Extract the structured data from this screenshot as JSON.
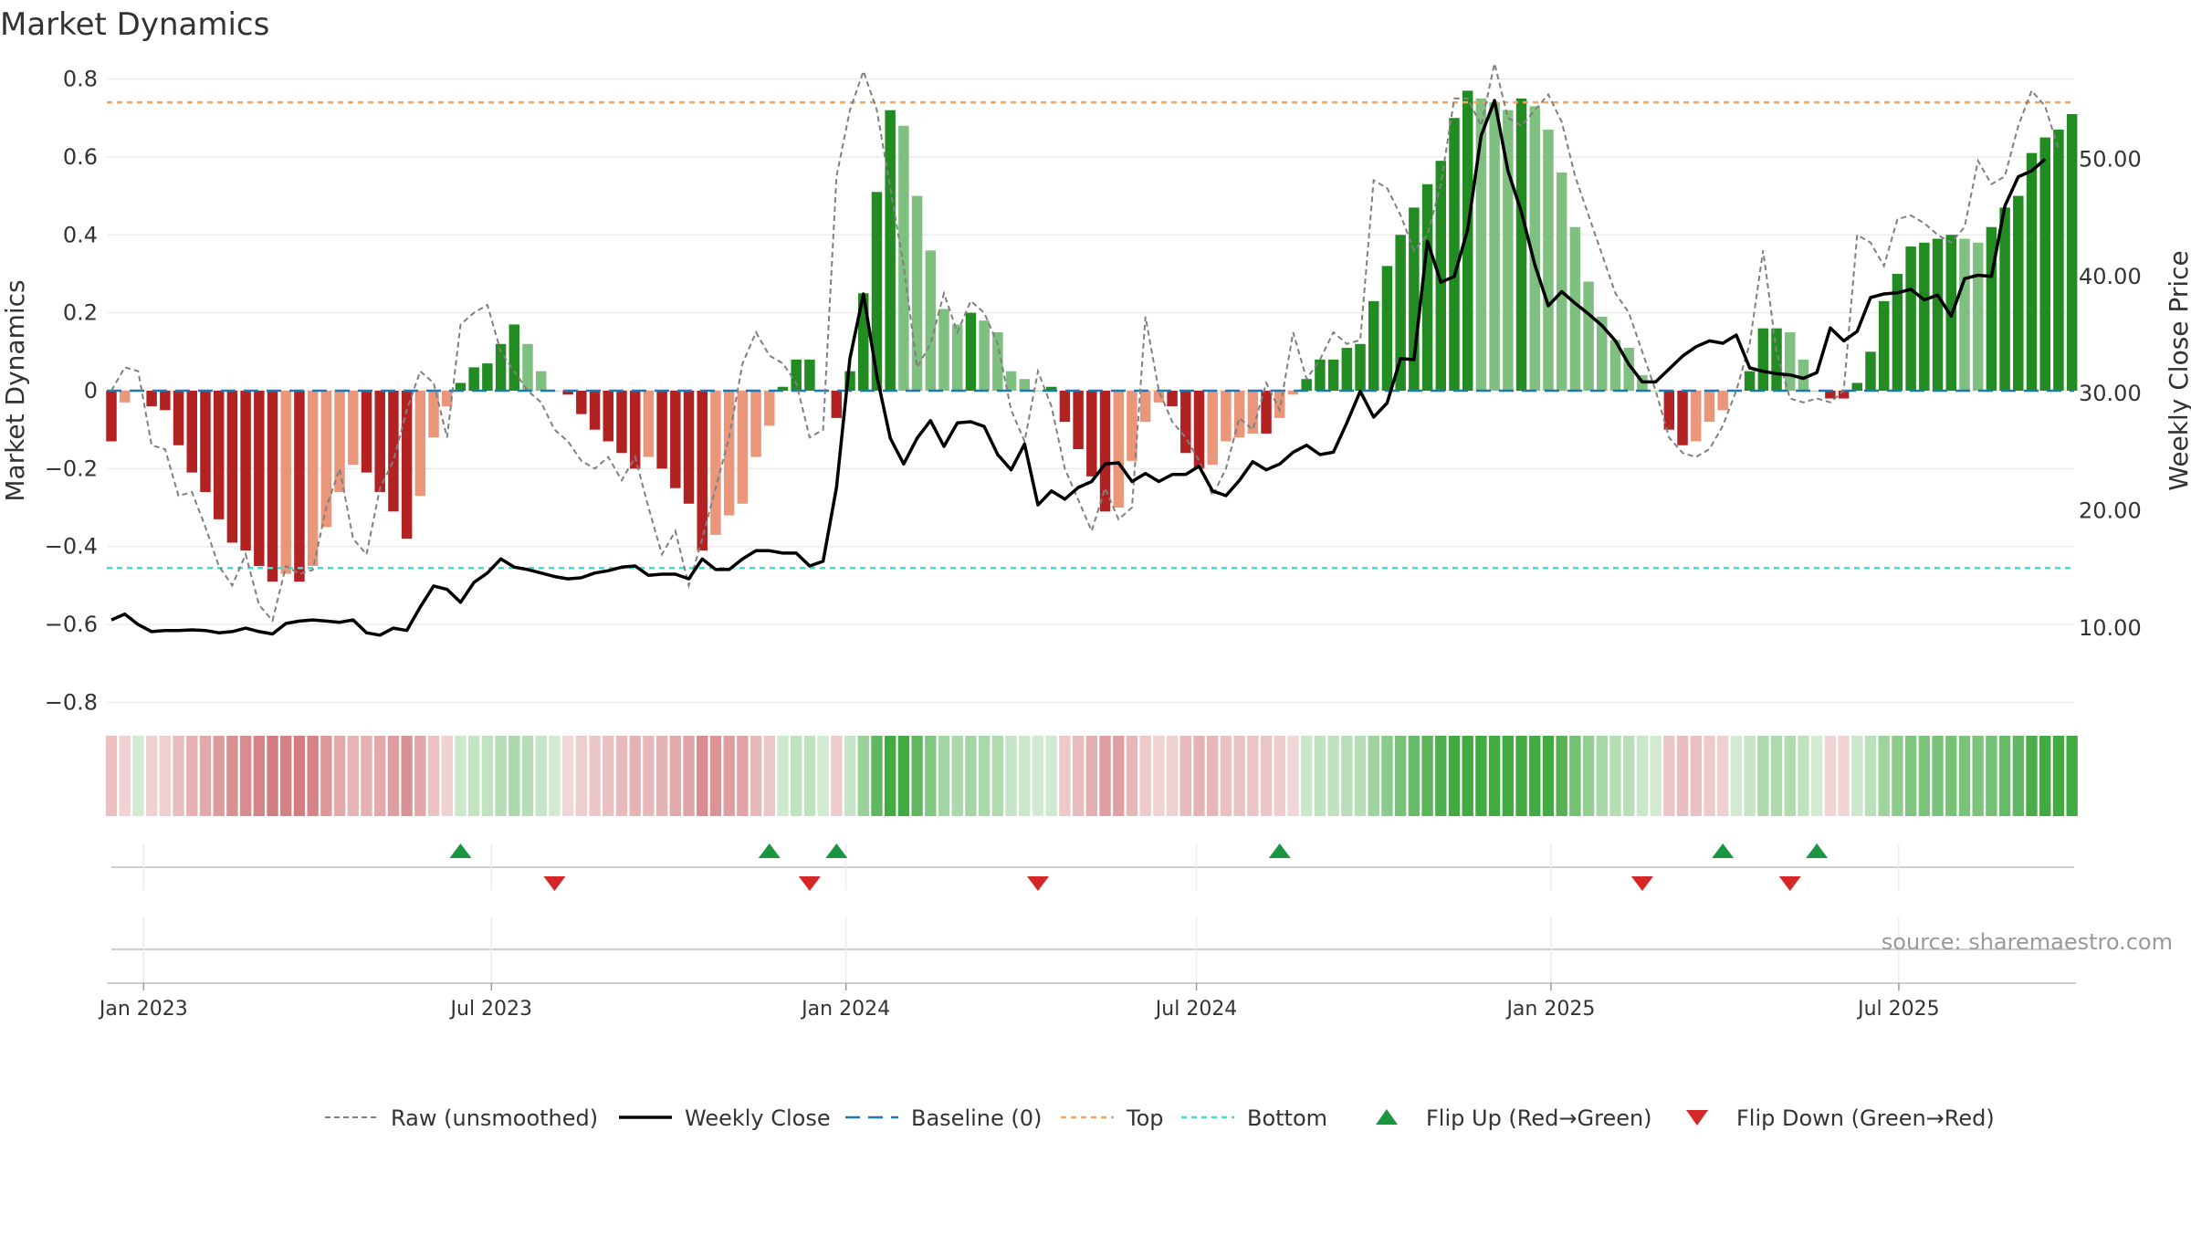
{
  "title": "Market Dynamics",
  "source_text": "source: sharemaestro.com",
  "colors": {
    "strong_green": "#228b22",
    "light_green": "#7fbf7f",
    "strong_red": "#b22222",
    "light_red": "#e9967a",
    "top_line": "#f4a460",
    "bottom_line": "#40e0d0",
    "baseline": "#1f77b4",
    "raw": "#808080",
    "close": "#000000",
    "flip_up": "#1a9641",
    "flip_down": "#d62728"
  },
  "chart_data": {
    "type": "bar",
    "title": "Market Dynamics",
    "ylabel": "Market Dynamics",
    "y2label": "Weekly Close Price",
    "ylim": [
      -0.82,
      0.82
    ],
    "y2lim": [
      3.0,
      57.5
    ],
    "yticks": [
      {
        "v": -0.8,
        "label": "−0.8"
      },
      {
        "v": -0.6,
        "label": "−0.6"
      },
      {
        "v": -0.4,
        "label": "−0.4"
      },
      {
        "v": -0.2,
        "label": "−0.2"
      },
      {
        "v": 0,
        "label": "0"
      },
      {
        "v": 0.2,
        "label": "0.2"
      },
      {
        "v": 0.4,
        "label": "0.4"
      },
      {
        "v": 0.6,
        "label": "0.6"
      },
      {
        "v": 0.8,
        "label": "0.8"
      }
    ],
    "y2ticks": [
      {
        "v": 10,
        "label": "10.00"
      },
      {
        "v": 20,
        "label": "20.00"
      },
      {
        "v": 30,
        "label": "30.00"
      },
      {
        "v": 40,
        "label": "40.00"
      },
      {
        "v": 50,
        "label": "50.00"
      }
    ],
    "xticks": [
      {
        "i": 2.4,
        "label": "Jan 2023"
      },
      {
        "i": 28.3,
        "label": "Jul 2023"
      },
      {
        "i": 54.7,
        "label": "Jan 2024"
      },
      {
        "i": 80.8,
        "label": "Jul 2024"
      },
      {
        "i": 107.2,
        "label": "Jan 2025"
      },
      {
        "i": 133.1,
        "label": "Jul 2025"
      }
    ],
    "top_level": 0.74,
    "bottom_level": -0.455,
    "values": [
      -0.13,
      -0.03,
      0,
      -0.04,
      -0.05,
      -0.14,
      -0.21,
      -0.26,
      -0.33,
      -0.39,
      -0.41,
      -0.45,
      -0.49,
      -0.47,
      -0.49,
      -0.45,
      -0.35,
      -0.26,
      -0.19,
      -0.21,
      -0.26,
      -0.31,
      -0.38,
      -0.27,
      -0.12,
      -0.04,
      0.02,
      0.06,
      0.07,
      0.12,
      0.17,
      0.12,
      0.05,
      0,
      -0.01,
      -0.06,
      -0.1,
      -0.13,
      -0.16,
      -0.2,
      -0.17,
      -0.2,
      -0.25,
      -0.29,
      -0.41,
      -0.37,
      -0.32,
      -0.29,
      -0.17,
      -0.09,
      0.01,
      0.08,
      0.08,
      0,
      -0.07,
      0.05,
      0.25,
      0.51,
      0.72,
      0.68,
      0.5,
      0.36,
      0.21,
      0.17,
      0.2,
      0.18,
      0.15,
      0.05,
      0.03,
      0,
      0.01,
      -0.08,
      -0.15,
      -0.22,
      -0.31,
      -0.3,
      -0.18,
      -0.08,
      -0.03,
      -0.04,
      -0.16,
      -0.2,
      -0.19,
      -0.13,
      -0.12,
      -0.11,
      -0.11,
      -0.07,
      -0.01,
      0.03,
      0.08,
      0.08,
      0.11,
      0.12,
      0.23,
      0.32,
      0.4,
      0.47,
      0.53,
      0.59,
      0.7,
      0.77,
      0.75,
      0.74,
      0.72,
      0.75,
      0.73,
      0.67,
      0.56,
      0.42,
      0.28,
      0.19,
      0.13,
      0.11,
      0.04,
      0,
      -0.1,
      -0.14,
      -0.13,
      -0.08,
      -0.05,
      0,
      0.05,
      0.16,
      0.16,
      0.15,
      0.08,
      0,
      -0.02,
      -0.02,
      0.02,
      0.1,
      0.23,
      0.3,
      0.37,
      0.38,
      0.39,
      0.4,
      0.39,
      0.38,
      0.42,
      0.47,
      0.5,
      0.61,
      0.65,
      0.67,
      0.71
    ],
    "raw_values": [
      0,
      0.06,
      0.05,
      -0.14,
      -0.15,
      -0.27,
      -0.26,
      -0.35,
      -0.45,
      -0.5,
      -0.42,
      -0.55,
      -0.59,
      -0.45,
      -0.47,
      -0.46,
      -0.3,
      -0.2,
      -0.38,
      -0.42,
      -0.25,
      -0.18,
      -0.05,
      0.05,
      0.02,
      -0.12,
      0.17,
      0.2,
      0.22,
      0.1,
      0.05,
      0,
      -0.03,
      -0.1,
      -0.13,
      -0.18,
      -0.2,
      -0.17,
      -0.23,
      -0.17,
      -0.3,
      -0.42,
      -0.36,
      -0.5,
      -0.38,
      -0.25,
      -0.12,
      0.07,
      0.15,
      0.09,
      0.07,
      0.02,
      -0.12,
      -0.1,
      0.55,
      0.72,
      0.82,
      0.72,
      0.52,
      0.32,
      0.06,
      0.12,
      0.25,
      0.15,
      0.23,
      0.2,
      0.12,
      -0.05,
      -0.13,
      0.05,
      -0.04,
      -0.2,
      -0.28,
      -0.36,
      -0.25,
      -0.33,
      -0.3,
      0.19,
      0,
      -0.08,
      -0.12,
      -0.18,
      -0.27,
      -0.2,
      -0.07,
      -0.1,
      0.02,
      -0.05,
      0.15,
      0.03,
      0.08,
      0.15,
      0.12,
      0.13,
      0.54,
      0.52,
      0.45,
      0.36,
      0.4,
      0.53,
      0.75,
      0.75,
      0.68,
      0.84,
      0.7,
      0.68,
      0.72,
      0.76,
      0.69,
      0.55,
      0.45,
      0.35,
      0.25,
      0.2,
      0.1,
      0,
      -0.12,
      -0.16,
      -0.17,
      -0.15,
      -0.09,
      0,
      0.12,
      0.36,
      0.1,
      -0.02,
      -0.03,
      -0.02,
      -0.03,
      0,
      0.4,
      0.38,
      0.32,
      0.44,
      0.45,
      0.43,
      0.4,
      0.38,
      0.42,
      0.59,
      0.53,
      0.55,
      0.68,
      0.77,
      0.73,
      0.62
    ],
    "close_values": [
      10.7,
      11.2,
      10.3,
      9.7,
      9.8,
      9.8,
      9.85,
      9.8,
      9.6,
      9.7,
      10.0,
      9.7,
      9.5,
      10.4,
      10.6,
      10.7,
      10.6,
      10.5,
      10.7,
      9.6,
      9.4,
      10.0,
      9.8,
      11.8,
      13.6,
      13.3,
      12.2,
      13.9,
      14.7,
      15.9,
      15.2,
      15.0,
      14.7,
      14.4,
      14.2,
      14.3,
      14.7,
      14.9,
      15.2,
      15.3,
      14.5,
      14.6,
      14.6,
      14.2,
      15.9,
      15.0,
      15.0,
      15.9,
      16.6,
      16.6,
      16.4,
      16.4,
      15.3,
      15.7,
      22.0,
      33.0,
      38.5,
      31.5,
      26.2,
      24.0,
      26.2,
      27.7,
      25.5,
      27.5,
      27.6,
      27.2,
      24.8,
      23.5,
      25.7,
      20.5,
      21.7,
      21.0,
      22.0,
      22.5,
      24.0,
      24.1,
      22.5,
      23.2,
      22.5,
      23.1,
      23.1,
      23.8,
      21.7,
      21.3,
      22.6,
      24.2,
      23.5,
      24.0,
      25.0,
      25.6,
      24.8,
      25.0,
      27.5,
      30.2,
      28.0,
      29.2,
      33.0,
      32.9,
      43.0,
      39.5,
      40.0,
      44.0,
      52.0,
      55.0,
      49.0,
      45.5,
      41.0,
      37.5,
      38.7,
      37.7,
      36.8,
      35.8,
      34.5,
      32.5,
      31.0,
      31.0,
      32.1,
      33.2,
      34.0,
      34.5,
      34.3,
      35.0,
      32.2,
      31.9,
      31.7,
      31.6,
      31.3,
      31.8,
      35.6,
      34.5,
      35.3,
      38.2,
      38.5,
      38.6,
      38.9,
      38.0,
      38.4,
      36.6,
      39.8,
      40.1,
      40.0,
      46.0,
      48.5,
      49.0,
      50.0
    ]
  },
  "heat_strip": {
    "note": "colors per week derived from chart_data.values"
  },
  "flips": {
    "up": [
      26,
      49,
      54,
      87,
      120,
      127
    ],
    "down": [
      33,
      52,
      69,
      114,
      125
    ]
  },
  "legend": [
    {
      "key": "raw",
      "label": "Raw (unsmoothed)"
    },
    {
      "key": "close",
      "label": "Weekly Close"
    },
    {
      "key": "baseline",
      "label": "Baseline (0)"
    },
    {
      "key": "top",
      "label": "Top"
    },
    {
      "key": "bottom",
      "label": "Bottom"
    },
    {
      "key": "flip_up",
      "label": "Flip Up (Red→Green)"
    },
    {
      "key": "flip_down",
      "label": "Flip Down (Green→Red)"
    }
  ]
}
